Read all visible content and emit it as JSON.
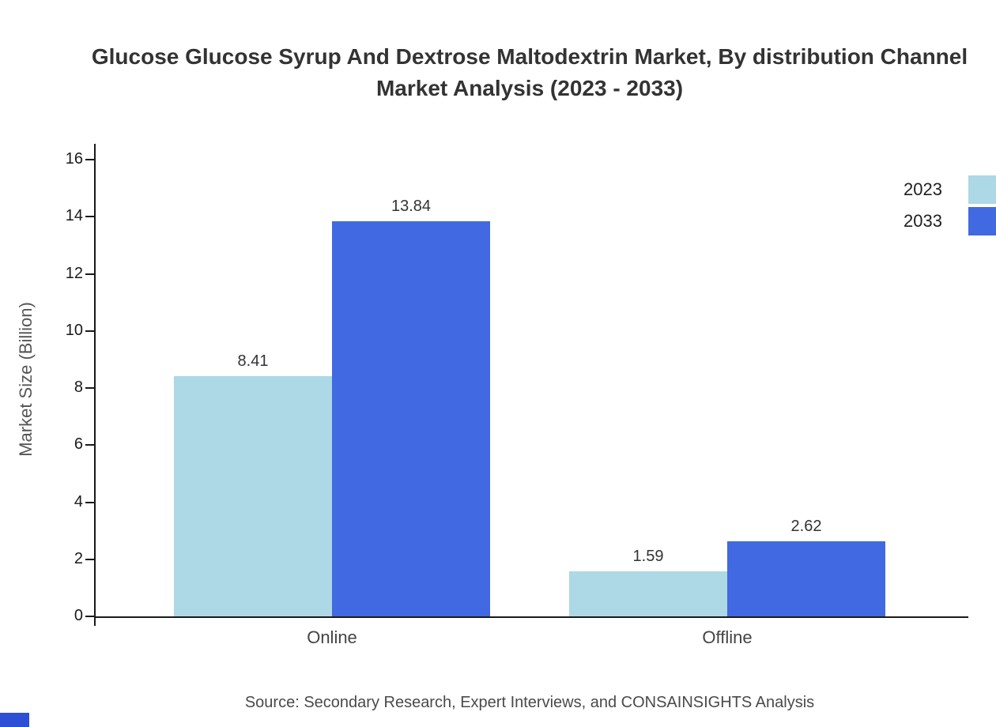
{
  "title": {
    "line1": "Glucose Glucose Syrup And Dextrose Maltodextrin Market, By distribution Channel",
    "line2": "Market Analysis (2023 - 2033)"
  },
  "ylabel": "Market Size (Billion)",
  "source": "Source: Secondary Research, Expert Interviews, and CONSAINSIGHTS Analysis",
  "colors": {
    "bar_2023": "#ADD8E6",
    "bar_2033": "#4169E1",
    "axis": "#1a1a1a",
    "corner_mark": "#2C4FD6"
  },
  "legend": [
    {
      "label": "2023",
      "color": "#ADD8E6"
    },
    {
      "label": "2033",
      "color": "#4169E1"
    }
  ],
  "chart_data": {
    "type": "bar",
    "categories": [
      "Online",
      "Offline"
    ],
    "series": [
      {
        "name": "2023",
        "color": "#ADD8E6",
        "values": [
          8.41,
          1.59
        ]
      },
      {
        "name": "2033",
        "color": "#4169E1",
        "values": [
          13.84,
          2.62
        ]
      }
    ],
    "title": "Glucose Glucose Syrup And Dextrose Maltodextrin Market, By distribution Channel Market Analysis (2023 - 2033)",
    "xlabel": "",
    "ylabel": "Market Size (Billion)",
    "ylim": [
      0,
      16
    ],
    "yticks": [
      0,
      2,
      4,
      6,
      8,
      10,
      12,
      14,
      16
    ],
    "value_labels": true,
    "grid": false,
    "legend_position": "top-right"
  }
}
